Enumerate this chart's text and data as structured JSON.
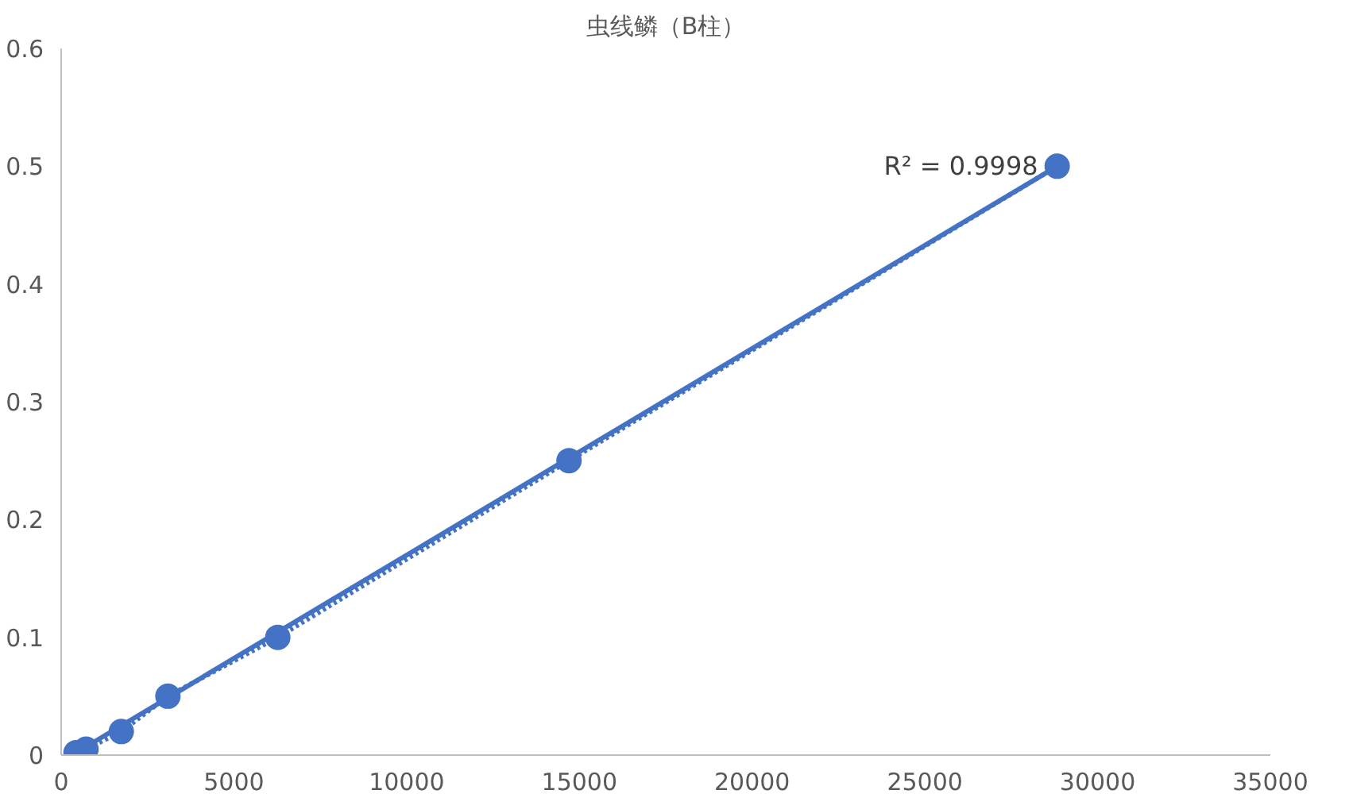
{
  "chart_data": {
    "type": "line",
    "title": "虫线鳞（B柱）",
    "x": [
      430,
      720,
      1740,
      3090,
      6270,
      14700,
      28830
    ],
    "series": [
      {
        "color": "#4472c4",
        "marker": "circle",
        "line_style": "dotted",
        "values": [
          0.002,
          0.005,
          0.02,
          0.05,
          0.1,
          0.25,
          0.5
        ]
      },
      {
        "color": "#4472c4",
        "marker": "none",
        "line_style": "solid",
        "x": [
          430,
          28830
        ],
        "values": [
          0.002,
          0.5
        ]
      }
    ],
    "annotations": [
      "R² = 0.9998"
    ],
    "xlim": [
      0,
      35000
    ],
    "xticks": [
      0,
      5000,
      10000,
      15000,
      20000,
      25000,
      30000,
      35000
    ],
    "ylim": [
      0,
      0.6
    ],
    "yticks": [
      0,
      0.1,
      0.2,
      0.3,
      0.4,
      0.5,
      0.6
    ],
    "grid": false
  }
}
